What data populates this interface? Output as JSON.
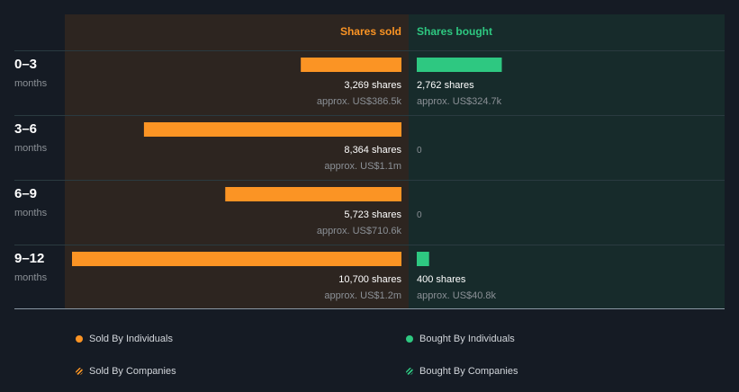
{
  "header": {
    "sold_label": "Shares sold",
    "bought_label": "Shares bought"
  },
  "colors": {
    "background": "#151b24",
    "sold_panel": "#2d2520",
    "bought_panel": "#172b2b",
    "sold": "#fb9424",
    "bought": "#2ec881",
    "row_divider": "#2a3a40",
    "baseline": "#8a97a3",
    "primary_text": "#ffffff",
    "muted_text": "#8b9096"
  },
  "chart_data": {
    "type": "bar",
    "layout": "diverging-horizontal",
    "categories": [
      {
        "period": "0–3",
        "unit": "months"
      },
      {
        "period": "3–6",
        "unit": "months"
      },
      {
        "period": "6–9",
        "unit": "months"
      },
      {
        "period": "9–12",
        "unit": "months"
      }
    ],
    "xlim": [
      0,
      10700
    ],
    "series": [
      {
        "name": "Shares sold",
        "values": [
          3269,
          8364,
          5723,
          10700
        ],
        "labels": [
          "3,269 shares",
          "8,364 shares",
          "5,723 shares",
          "10,700 shares"
        ],
        "approx": [
          "approx. US$386.5k",
          "approx. US$1.1m",
          "approx. US$710.6k",
          "approx. US$1.2m"
        ]
      },
      {
        "name": "Shares bought",
        "values": [
          2762,
          0,
          0,
          400
        ],
        "labels": [
          "2,762 shares",
          "0",
          "0",
          "400 shares"
        ],
        "approx": [
          "approx. US$324.7k",
          "",
          "",
          "approx. US$40.8k"
        ]
      }
    ]
  },
  "legend": {
    "sold_individuals": "Sold By Individuals",
    "bought_individuals": "Bought By Individuals",
    "sold_companies": "Sold By Companies",
    "bought_companies": "Bought By Companies"
  }
}
